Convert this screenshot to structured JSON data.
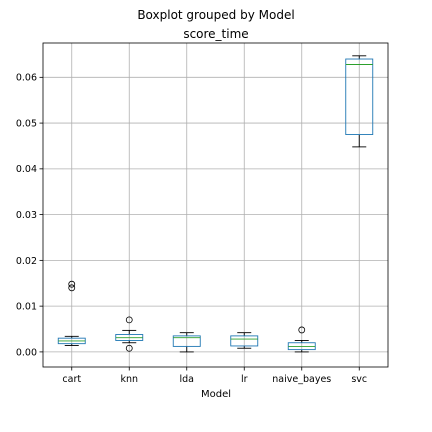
{
  "chart_data": {
    "type": "boxplot",
    "suptitle": "Boxplot grouped by Model",
    "title": "score_time",
    "xlabel": "Model",
    "ylabel": "",
    "categories": [
      "cart",
      "knn",
      "lda",
      "lr",
      "naive_bayes",
      "svc"
    ],
    "ylim": [
      -0.0033,
      0.0675
    ],
    "yticks": [
      0.0,
      0.01,
      0.02,
      0.03,
      0.04,
      0.05,
      0.06
    ],
    "ytick_labels": [
      "0.00",
      "0.01",
      "0.02",
      "0.03",
      "0.04",
      "0.05",
      "0.06"
    ],
    "grid": true,
    "colors": {
      "box": "#1f77b4",
      "median": "#2ca02c",
      "whisker": "#000000",
      "grid": "#b0b0b0"
    },
    "boxes": [
      {
        "label": "cart",
        "whislo": 0.0014,
        "q1": 0.0018,
        "med": 0.0024,
        "q3": 0.003,
        "whishi": 0.0034,
        "fliers": [
          0.014,
          0.0148
        ]
      },
      {
        "label": "knn",
        "whislo": 0.002,
        "q1": 0.0025,
        "med": 0.0031,
        "q3": 0.0038,
        "whishi": 0.0047,
        "fliers": [
          0.007,
          0.0008
        ]
      },
      {
        "label": "lda",
        "whislo": 0.0,
        "q1": 0.0012,
        "med": 0.0031,
        "q3": 0.0035,
        "whishi": 0.0042,
        "fliers": []
      },
      {
        "label": "lr",
        "whislo": 0.0008,
        "q1": 0.0013,
        "med": 0.0028,
        "q3": 0.0035,
        "whishi": 0.0042,
        "fliers": []
      },
      {
        "label": "naive_bayes",
        "whislo": 0.0,
        "q1": 0.0005,
        "med": 0.0012,
        "q3": 0.002,
        "whishi": 0.0025,
        "fliers": [
          0.0048
        ]
      },
      {
        "label": "svc",
        "whislo": 0.0448,
        "q1": 0.0475,
        "med": 0.0628,
        "q3": 0.064,
        "whishi": 0.0647,
        "fliers": []
      }
    ]
  }
}
